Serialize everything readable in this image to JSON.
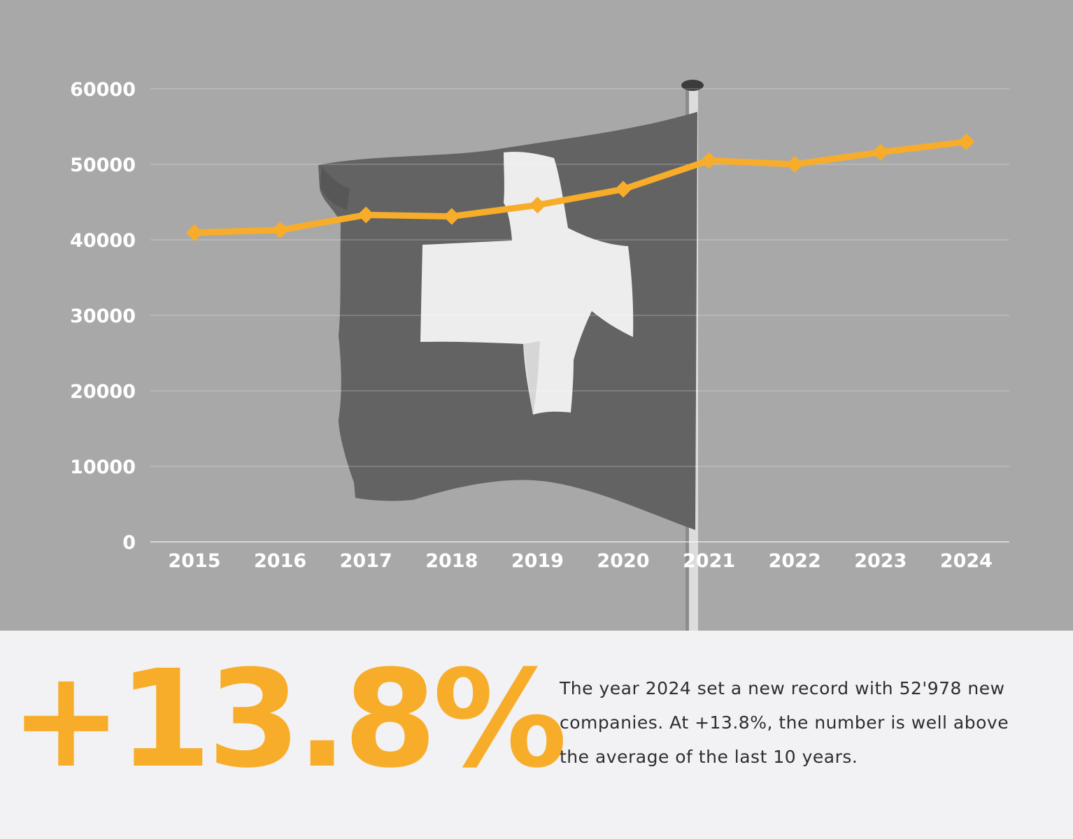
{
  "colors": {
    "accent": "#f8ad2a",
    "background": "#a9a8a9",
    "panel": "#f2f2f4",
    "text": "#2e2e2e"
  },
  "chart_data": {
    "type": "line",
    "title": "",
    "xlabel": "",
    "ylabel": "",
    "x": [
      "2015",
      "2016",
      "2017",
      "2018",
      "2019",
      "2020",
      "2021",
      "2022",
      "2023",
      "2024"
    ],
    "series": [
      {
        "values": [
          40950,
          41300,
          43300,
          43100,
          44600,
          46700,
          50500,
          50000,
          51600,
          52978
        ]
      }
    ],
    "ylim": [
      0,
      60000
    ],
    "yticks": [
      "0",
      "10000",
      "20000",
      "30000",
      "40000",
      "50000",
      "60000"
    ],
    "grid": true,
    "legend": "none",
    "series_color": "#f8ad2a",
    "marker": "diamond"
  },
  "summary": {
    "big_stat": "+13.8%",
    "text": "The year 2024 set a new record with 52'978 new companies. At +13.8%, the number is well above the average of the last 10 years."
  }
}
